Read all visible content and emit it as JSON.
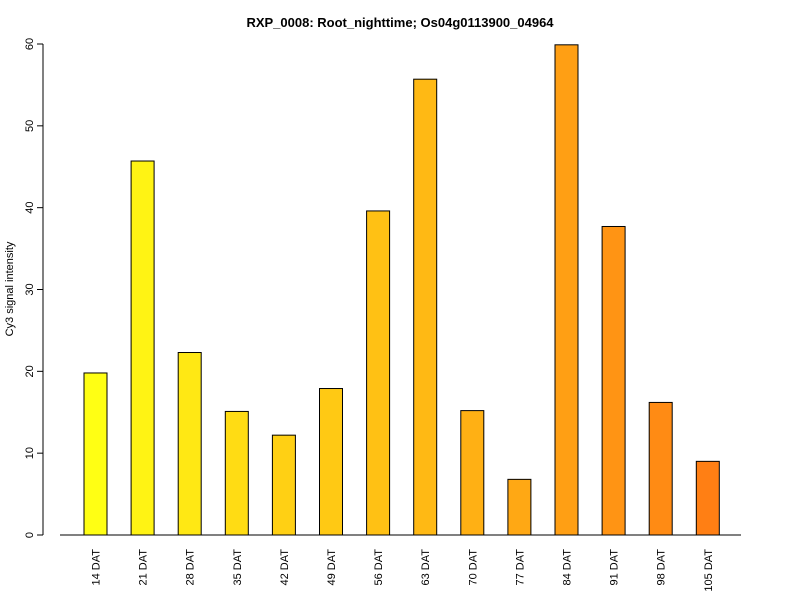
{
  "chart_data": {
    "type": "bar",
    "title": "RXP_0008: Root_nighttime; Os04g0113900_04964",
    "xlabel": "",
    "ylabel": "Cy3 signal intensity",
    "ylim": [
      0,
      60
    ],
    "yticks": [
      0,
      10,
      20,
      30,
      40,
      50,
      60
    ],
    "categories": [
      "14 DAT",
      "21 DAT",
      "28 DAT",
      "35 DAT",
      "42 DAT",
      "49 DAT",
      "56 DAT",
      "63 DAT",
      "70 DAT",
      "77 DAT",
      "84 DAT",
      "91 DAT",
      "98 DAT",
      "105 DAT"
    ],
    "values": [
      19.8,
      45.7,
      22.3,
      15.1,
      12.2,
      17.9,
      39.6,
      55.7,
      15.2,
      6.8,
      59.9,
      37.7,
      16.2,
      9.0
    ],
    "colors": [
      "#FFFF14",
      "#FFF314",
      "#FFE814",
      "#FFDC14",
      "#FFD014",
      "#FFC914",
      "#FFC114",
      "#FFB914",
      "#FFB014",
      "#FFA814",
      "#FF9F14",
      "#FF9414",
      "#FF8B14",
      "#FF7F14"
    ],
    "grid": false,
    "legend": "none"
  }
}
